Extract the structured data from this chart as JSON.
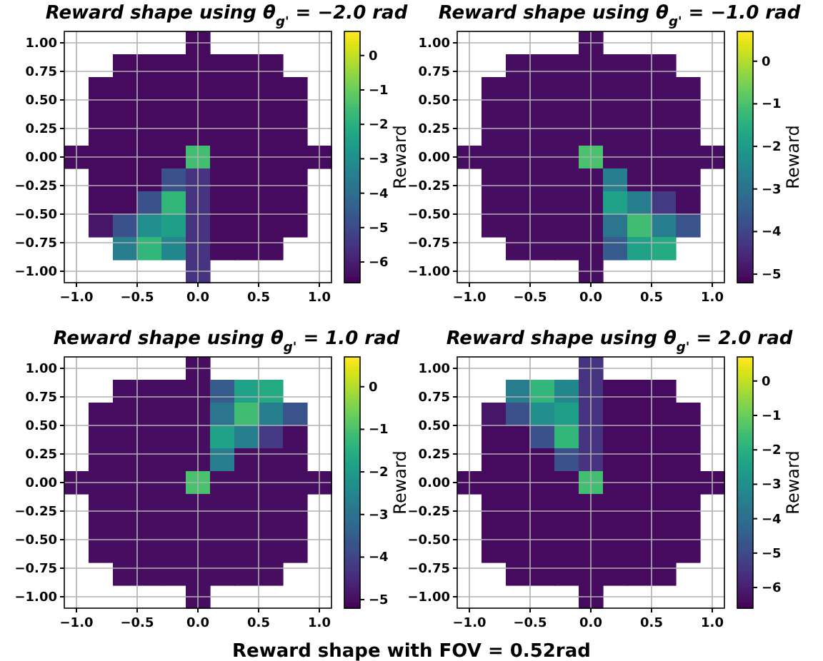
{
  "chart_data": [
    {
      "type": "heatmap",
      "title": "Reward shape using θ$_{g'}$ = −2.0 rad",
      "clabel": "Reward",
      "grid": true,
      "xlim": [
        -1.1,
        1.1
      ],
      "ylim": [
        -1.1,
        1.1
      ],
      "xticks": [
        {
          "value": -1,
          "label": "−1.0"
        },
        {
          "value": -0.5,
          "label": "−0.5"
        },
        {
          "value": 0,
          "label": "0.0"
        },
        {
          "value": 0.5,
          "label": "0.5"
        },
        {
          "value": 1,
          "label": "1.0"
        }
      ],
      "yticks": [
        {
          "value": -1,
          "label": "−1.00"
        },
        {
          "value": -0.75,
          "label": "−0.75"
        },
        {
          "value": -0.5,
          "label": "−0.50"
        },
        {
          "value": -0.25,
          "label": "−0.25"
        },
        {
          "value": 0,
          "label": "0.00"
        },
        {
          "value": 0.25,
          "label": "0.25"
        },
        {
          "value": 0.5,
          "label": "0.50"
        },
        {
          "value": 0.75,
          "label": "0.75"
        },
        {
          "value": 1,
          "label": "1.00"
        }
      ],
      "clim": [
        -6.6,
        0.7
      ],
      "cticks": [
        {
          "value": -6,
          "label": "−6"
        },
        {
          "value": -5,
          "label": "−5"
        },
        {
          "value": -4,
          "label": "−4"
        },
        {
          "value": -3,
          "label": "−3"
        },
        {
          "value": -2,
          "label": "−2"
        },
        {
          "value": -1,
          "label": "−1"
        },
        {
          "value": 0,
          "label": "0"
        }
      ],
      "cells": [
        [
          null,
          null,
          null,
          null,
          null,
          -6.4,
          null,
          null,
          null,
          null,
          null
        ],
        [
          null,
          null,
          -6.4,
          -6.4,
          -6.4,
          -6.4,
          -6.4,
          -6.4,
          -6.4,
          null,
          null
        ],
        [
          null,
          -6.4,
          -6.4,
          -6.4,
          -6.4,
          -6.4,
          -6.4,
          -6.4,
          -6.4,
          -6.4,
          null
        ],
        [
          null,
          -6.4,
          -6.4,
          -6.4,
          -6.4,
          -6.4,
          -6.4,
          -6.4,
          -6.4,
          -6.4,
          null
        ],
        [
          null,
          -6.4,
          -6.4,
          -6.4,
          -6.4,
          -6.4,
          -6.4,
          -6.4,
          -6.4,
          -6.4,
          null
        ],
        [
          -6.4,
          -6.4,
          -6.4,
          -6.4,
          -6.4,
          -1.5,
          -6.4,
          -6.4,
          -6.4,
          -6.4,
          -6.4
        ],
        [
          null,
          -6.4,
          -6.4,
          -6.4,
          -4.8,
          -5.5,
          -6.4,
          -6.4,
          -6.4,
          -6.4,
          null
        ],
        [
          null,
          -6.4,
          -6.4,
          -4.8,
          -1.8,
          -5.5,
          -6.4,
          -6.4,
          -6.4,
          -6.4,
          null
        ],
        [
          null,
          -6.2,
          -4.8,
          -3.0,
          -2.5,
          -5.5,
          -6.4,
          -6.4,
          -6.4,
          -6.4,
          null
        ],
        [
          null,
          null,
          -3.5,
          -1.8,
          -3.2,
          -5.5,
          -6.4,
          -6.4,
          -6.4,
          null,
          null
        ],
        [
          null,
          null,
          null,
          null,
          null,
          -5.5,
          null,
          null,
          null,
          null,
          null
        ]
      ]
    },
    {
      "type": "heatmap",
      "title": "Reward shape using θ$_{g'}$ = −1.0 rad",
      "clabel": "Reward",
      "grid": true,
      "xlim": [
        -1.1,
        1.1
      ],
      "ylim": [
        -1.1,
        1.1
      ],
      "xticks": [
        {
          "value": -1,
          "label": "−1.0"
        },
        {
          "value": -0.5,
          "label": "−0.5"
        },
        {
          "value": 0,
          "label": "0.0"
        },
        {
          "value": 0.5,
          "label": "0.5"
        },
        {
          "value": 1,
          "label": "1.0"
        }
      ],
      "yticks": [
        {
          "value": -1,
          "label": "−1.00"
        },
        {
          "value": -0.75,
          "label": "−0.75"
        },
        {
          "value": -0.5,
          "label": "−0.50"
        },
        {
          "value": -0.25,
          "label": "−0.25"
        },
        {
          "value": 0,
          "label": "0.00"
        },
        {
          "value": 0.25,
          "label": "0.25"
        },
        {
          "value": 0.5,
          "label": "0.50"
        },
        {
          "value": 0.75,
          "label": "0.75"
        },
        {
          "value": 1,
          "label": "1.00"
        }
      ],
      "clim": [
        -5.2,
        0.7
      ],
      "cticks": [
        {
          "value": -5,
          "label": "−5"
        },
        {
          "value": -4,
          "label": "−4"
        },
        {
          "value": -3,
          "label": "−3"
        },
        {
          "value": -2,
          "label": "−2"
        },
        {
          "value": -1,
          "label": "−1"
        },
        {
          "value": 0,
          "label": "0"
        }
      ],
      "cells": [
        [
          null,
          null,
          null,
          null,
          null,
          -5,
          null,
          null,
          null,
          null,
          null
        ],
        [
          null,
          null,
          -5,
          -5,
          -5,
          -5,
          -5,
          -5,
          -5,
          null,
          null
        ],
        [
          null,
          -5,
          -5,
          -5,
          -5,
          -5,
          -5,
          -5,
          -5,
          -5,
          null
        ],
        [
          null,
          -5,
          -5,
          -5,
          -5,
          -5,
          -5,
          -5,
          -5,
          -5,
          null
        ],
        [
          null,
          -5,
          -5,
          -5,
          -5,
          -5,
          -5,
          -5,
          -5,
          -5,
          null
        ],
        [
          -5,
          -5,
          -5,
          -5,
          -5,
          -1,
          -5,
          -5,
          -5,
          -5,
          -5
        ],
        [
          null,
          -5,
          -5,
          -5,
          -5,
          -5,
          -2.7,
          -5,
          -5,
          -5,
          null
        ],
        [
          null,
          -5,
          -5,
          -5,
          -5,
          -5,
          -1.8,
          -2.7,
          -4.2,
          -5,
          null
        ],
        [
          null,
          -5,
          -5,
          -5,
          -5,
          -5,
          -2.9,
          -1.1,
          -2.7,
          -3.7,
          null
        ],
        [
          null,
          null,
          -5,
          -5,
          -5,
          -5,
          -3.5,
          -1.8,
          -1.6,
          null,
          null
        ],
        [
          null,
          null,
          null,
          null,
          null,
          -5,
          null,
          null,
          null,
          null,
          null
        ]
      ]
    },
    {
      "type": "heatmap",
      "title": "Reward shape using θ$_{g'}$ = 1.0 rad",
      "clabel": "Reward",
      "grid": true,
      "xlim": [
        -1.1,
        1.1
      ],
      "ylim": [
        -1.1,
        1.1
      ],
      "xticks": [
        {
          "value": -1,
          "label": "−1.0"
        },
        {
          "value": -0.5,
          "label": "−0.5"
        },
        {
          "value": 0,
          "label": "0.0"
        },
        {
          "value": 0.5,
          "label": "0.5"
        },
        {
          "value": 1,
          "label": "1.0"
        }
      ],
      "yticks": [
        {
          "value": -1,
          "label": "−1.00"
        },
        {
          "value": -0.75,
          "label": "−0.75"
        },
        {
          "value": -0.5,
          "label": "−0.50"
        },
        {
          "value": -0.25,
          "label": "−0.25"
        },
        {
          "value": 0,
          "label": "0.00"
        },
        {
          "value": 0.25,
          "label": "0.25"
        },
        {
          "value": 0.5,
          "label": "0.50"
        },
        {
          "value": 0.75,
          "label": "0.75"
        },
        {
          "value": 1,
          "label": "1.00"
        }
      ],
      "clim": [
        -5.2,
        0.7
      ],
      "cticks": [
        {
          "value": -5,
          "label": "−5"
        },
        {
          "value": -4,
          "label": "−4"
        },
        {
          "value": -3,
          "label": "−3"
        },
        {
          "value": -2,
          "label": "−2"
        },
        {
          "value": -1,
          "label": "−1"
        },
        {
          "value": 0,
          "label": "0"
        }
      ],
      "cells": [
        [
          null,
          null,
          null,
          null,
          null,
          -5,
          null,
          null,
          null,
          null,
          null
        ],
        [
          null,
          null,
          -5,
          -5,
          -5,
          -5,
          -3.5,
          -1.8,
          -1.6,
          null,
          null
        ],
        [
          null,
          -5,
          -5,
          -5,
          -5,
          -5,
          -2.9,
          -1.1,
          -2.7,
          -3.7,
          null
        ],
        [
          null,
          -5,
          -5,
          -5,
          -5,
          -5,
          -1.8,
          -2.7,
          -4.2,
          -5,
          null
        ],
        [
          null,
          -5,
          -5,
          -5,
          -5,
          -5,
          -2.7,
          -5,
          -5,
          -5,
          null
        ],
        [
          -5,
          -5,
          -5,
          -5,
          -5,
          -1,
          -5,
          -5,
          -5,
          -5,
          -5
        ],
        [
          null,
          -5,
          -5,
          -5,
          -5,
          -5,
          -5,
          -5,
          -5,
          -5,
          null
        ],
        [
          null,
          -5,
          -5,
          -5,
          -5,
          -5,
          -5,
          -5,
          -5,
          -5,
          null
        ],
        [
          null,
          -5,
          -5,
          -5,
          -5,
          -5,
          -5,
          -5,
          -5,
          -5,
          null
        ],
        [
          null,
          null,
          -5,
          -5,
          -5,
          -5,
          -5,
          -5,
          -5,
          null,
          null
        ],
        [
          null,
          null,
          null,
          null,
          null,
          -5,
          null,
          null,
          null,
          null,
          null
        ]
      ]
    },
    {
      "type": "heatmap",
      "title": "Reward shape using θ$_{g'}$ = 2.0 rad",
      "clabel": "Reward",
      "grid": true,
      "annotations": [
        "Reward shape with FOV = 0.52rad"
      ],
      "xlim": [
        -1.1,
        1.1
      ],
      "ylim": [
        -1.1,
        1.1
      ],
      "xticks": [
        {
          "value": -1,
          "label": "−1.0"
        },
        {
          "value": -0.5,
          "label": "−0.5"
        },
        {
          "value": 0,
          "label": "0.0"
        },
        {
          "value": 0.5,
          "label": "0.5"
        },
        {
          "value": 1,
          "label": "1.0"
        }
      ],
      "yticks": [
        {
          "value": -1,
          "label": "−1.00"
        },
        {
          "value": -0.75,
          "label": "−0.75"
        },
        {
          "value": -0.5,
          "label": "−0.50"
        },
        {
          "value": -0.25,
          "label": "−0.25"
        },
        {
          "value": 0,
          "label": "0.00"
        },
        {
          "value": 0.25,
          "label": "0.25"
        },
        {
          "value": 0.5,
          "label": "0.50"
        },
        {
          "value": 0.75,
          "label": "0.75"
        },
        {
          "value": 1,
          "label": "1.00"
        }
      ],
      "clim": [
        -6.6,
        0.7
      ],
      "cticks": [
        {
          "value": -6,
          "label": "−6"
        },
        {
          "value": -5,
          "label": "−5"
        },
        {
          "value": -4,
          "label": "−4"
        },
        {
          "value": -3,
          "label": "−3"
        },
        {
          "value": -2,
          "label": "−2"
        },
        {
          "value": -1,
          "label": "−1"
        },
        {
          "value": 0,
          "label": "0"
        }
      ],
      "cells": [
        [
          null,
          null,
          null,
          null,
          null,
          -5.5,
          null,
          null,
          null,
          null,
          null
        ],
        [
          null,
          null,
          -3.5,
          -1.8,
          -3.2,
          -5.5,
          -6.4,
          -6.4,
          -6.4,
          null,
          null
        ],
        [
          null,
          -6.2,
          -4.8,
          -3.0,
          -2.5,
          -5.5,
          -6.4,
          -6.4,
          -6.4,
          -6.4,
          null
        ],
        [
          null,
          -6.4,
          -6.4,
          -4.8,
          -1.8,
          -5.5,
          -6.4,
          -6.4,
          -6.4,
          -6.4,
          null
        ],
        [
          null,
          -6.4,
          -6.4,
          -6.4,
          -4.8,
          -5.5,
          -6.4,
          -6.4,
          -6.4,
          -6.4,
          null
        ],
        [
          -6.4,
          -6.4,
          -6.4,
          -6.4,
          -6.4,
          -1.5,
          -6.4,
          -6.4,
          -6.4,
          -6.4,
          -6.4
        ],
        [
          null,
          -6.4,
          -6.4,
          -6.4,
          -6.4,
          -6.4,
          -6.4,
          -6.4,
          -6.4,
          -6.4,
          null
        ],
        [
          null,
          -6.4,
          -6.4,
          -6.4,
          -6.4,
          -6.4,
          -6.4,
          -6.4,
          -6.4,
          -6.4,
          null
        ],
        [
          null,
          -6.4,
          -6.4,
          -6.4,
          -6.4,
          -6.4,
          -6.4,
          -6.4,
          -6.4,
          -6.4,
          null
        ],
        [
          null,
          null,
          -6.4,
          -6.4,
          -6.4,
          -6.4,
          -6.4,
          -6.4,
          -6.4,
          null,
          null
        ],
        [
          null,
          null,
          null,
          null,
          null,
          -6.4,
          null,
          null,
          null,
          null,
          null
        ]
      ]
    }
  ]
}
